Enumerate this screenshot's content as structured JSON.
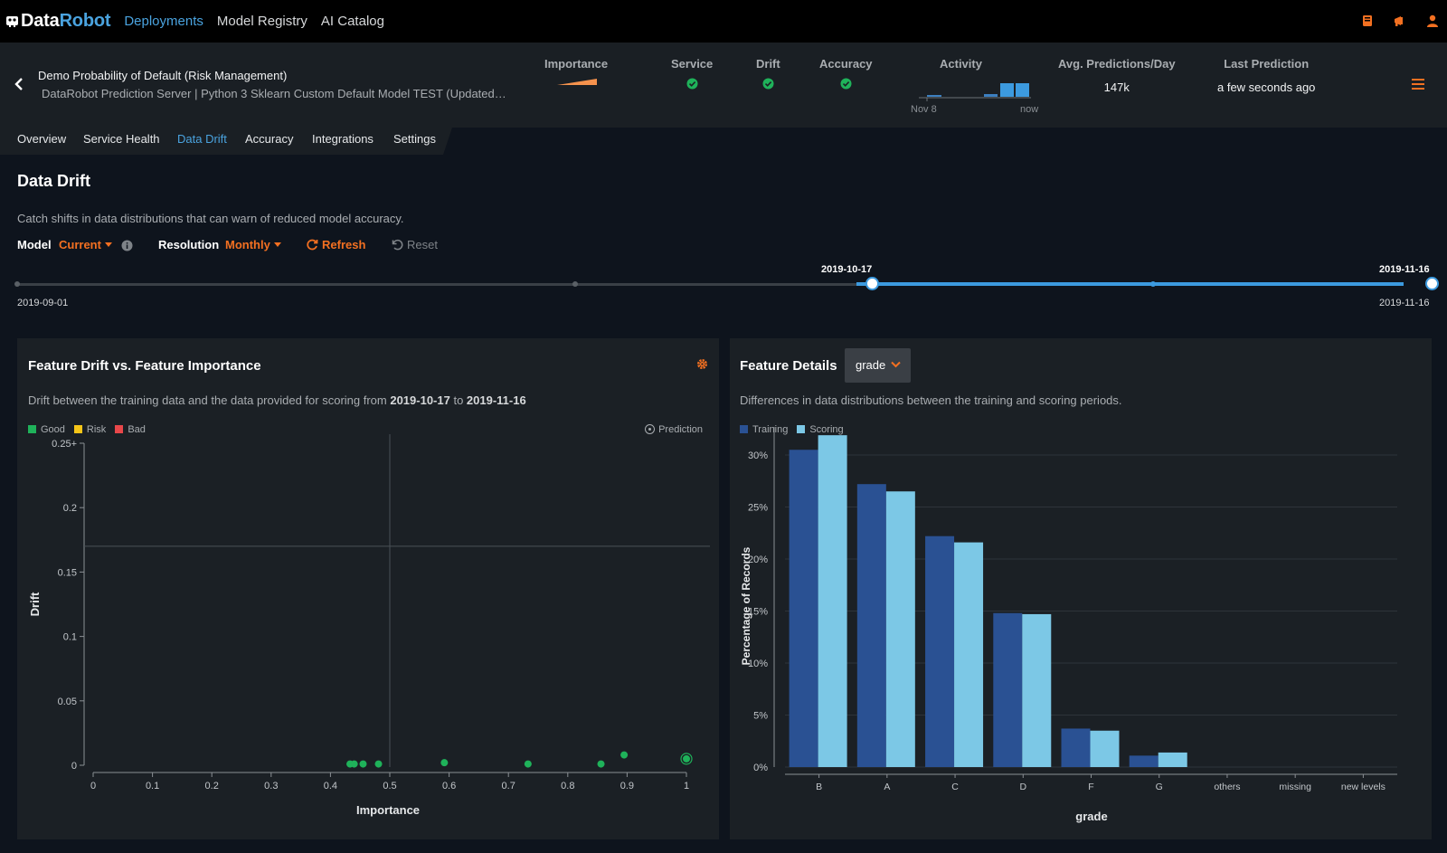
{
  "nav": {
    "logo_a": "Data",
    "logo_b": "Robot",
    "links": [
      "Deployments",
      "Model Registry",
      "AI Catalog"
    ],
    "icons": [
      "book-icon",
      "megaphone-icon",
      "user-icon"
    ],
    "accent": "#f37021",
    "link_color": "#4aa3df"
  },
  "header": {
    "title": "Demo Probability of Default (Risk Management)",
    "subtitle": "DataRobot Prediction Server | Python 3 Sklearn Custom Default Model TEST (Updated MLOps Agent)",
    "importance_label": "Importance",
    "service_label": "Service",
    "drift_label": "Drift",
    "accuracy_label": "Accuracy",
    "activity_label": "Activity",
    "avg_label": "Avg. Predictions/Day",
    "avg_value": "147k",
    "last_label": "Last Prediction",
    "last_value": "a few seconds ago",
    "activity_start": "Nov 8",
    "activity_end": "now",
    "status_color": "#1fb25a"
  },
  "tabs": [
    {
      "label": "Overview",
      "active": false
    },
    {
      "label": "Service Health",
      "active": false
    },
    {
      "label": "Data Drift",
      "active": true
    },
    {
      "label": "Accuracy",
      "active": false
    },
    {
      "label": "Integrations",
      "active": false
    },
    {
      "label": "Settings",
      "active": false
    }
  ],
  "page": {
    "title": "Data Drift",
    "description": "Catch shifts in data distributions that can warn of reduced model accuracy.",
    "model_label": "Model",
    "model_value": "Current",
    "resolution_label": "Resolution",
    "resolution_value": "Monthly",
    "refresh_label": "Refresh",
    "reset_label": "Reset"
  },
  "timeline": {
    "start": "2019-09-01",
    "sel_start": "2019-10-17",
    "sel_end_top": "2019-11-16",
    "sel_end_bottom": "2019-11-16"
  },
  "drift_panel": {
    "title": "Feature Drift vs. Feature Importance",
    "desc_pre": "Drift between the training data and the data provided for scoring from ",
    "date_from": "2019-10-17",
    "desc_mid": " to ",
    "date_to": "2019-11-16",
    "legend": [
      {
        "label": "Good",
        "color": "#1fb25a"
      },
      {
        "label": "Risk",
        "color": "#f5c518"
      },
      {
        "label": "Bad",
        "color": "#e8474a"
      }
    ],
    "prediction_label": "Prediction"
  },
  "details_panel": {
    "title": "Feature Details",
    "feature": "grade",
    "description": "Differences in data distributions between the training and scoring periods.",
    "legend": [
      {
        "label": "Training",
        "color": "#2a5193"
      },
      {
        "label": "Scoring",
        "color": "#7cc8e6"
      }
    ]
  },
  "chart_data": [
    {
      "type": "scatter",
      "title": "",
      "xlabel": "Importance",
      "ylabel": "Drift",
      "xlim": [
        0,
        1
      ],
      "ylim": [
        0,
        0.25
      ],
      "xticks": [
        "0",
        "0.1",
        "0.2",
        "0.3",
        "0.4",
        "0.5",
        "0.6",
        "0.7",
        "0.8",
        "0.9",
        "1"
      ],
      "yticks": [
        "0",
        "0.05",
        "0.1",
        "0.15",
        "0.2",
        "0.25+"
      ],
      "threshold_x": 0.5,
      "threshold_y": 0.17,
      "points": [
        {
          "x": 0.433,
          "y": 0.001
        },
        {
          "x": 0.44,
          "y": 0.001
        },
        {
          "x": 0.455,
          "y": 0.001
        },
        {
          "x": 0.481,
          "y": 0.001
        },
        {
          "x": 0.592,
          "y": 0.002
        },
        {
          "x": 0.733,
          "y": 0.001
        },
        {
          "x": 0.856,
          "y": 0.001
        },
        {
          "x": 0.895,
          "y": 0.008
        },
        {
          "x": 1.0,
          "y": 0.005,
          "prediction": true
        }
      ],
      "point_color": "#1fb25a"
    },
    {
      "type": "bar",
      "title": "",
      "xlabel": "grade",
      "ylabel": "Percentage of Records",
      "categories": [
        "B",
        "A",
        "C",
        "D",
        "F",
        "G",
        "others",
        "missing",
        "new levels"
      ],
      "ylim": [
        0,
        32
      ],
      "yticks": [
        "0%",
        "5%",
        "10%",
        "15%",
        "20%",
        "25%",
        "30%"
      ],
      "series": [
        {
          "name": "Training",
          "values": [
            30.5,
            27.2,
            22.2,
            14.8,
            3.7,
            1.1,
            0,
            0,
            0
          ]
        },
        {
          "name": "Scoring",
          "values": [
            31.9,
            26.5,
            21.6,
            14.7,
            3.5,
            1.4,
            0,
            0,
            0
          ]
        }
      ]
    }
  ]
}
